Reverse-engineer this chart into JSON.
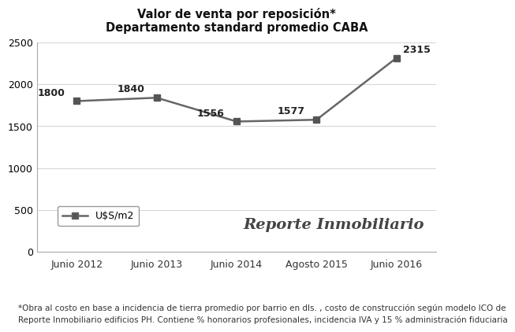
{
  "title_line1": "Valor de venta por reposición*",
  "title_line2": "Departamento standard promedio CABA",
  "x_labels": [
    "Junio 2012",
    "Junio 2013",
    "Junio 2014",
    "Agosto 2015",
    "Junio 2016"
  ],
  "y_values": [
    1800,
    1840,
    1556,
    1577,
    2315
  ],
  "ylim": [
    0,
    2500
  ],
  "yticks": [
    0,
    500,
    1000,
    1500,
    2000,
    2500
  ],
  "line_color": "#666666",
  "marker_style": "s",
  "marker_size": 6,
  "marker_color": "#555555",
  "line_width": 1.8,
  "legend_label": "U$S/m2",
  "watermark_text": "Reporte Inmobiliario",
  "footnote_line1": "*Obra al costo en base a incidencia de tierra promedio por barrio en dls. , costo de construcción según modelo ICO de",
  "footnote_line2": "Reporte Inmobiliario edificios PH. Contiene % honorarios profesionales, incidencia IVA y 15 % administración fiduciaria",
  "background_color": "#ffffff",
  "title_fontsize": 10.5,
  "tick_fontsize": 9,
  "footnote_fontsize": 7.5,
  "annot_fontsize": 9,
  "legend_fontsize": 9,
  "watermark_fontsize": 14
}
